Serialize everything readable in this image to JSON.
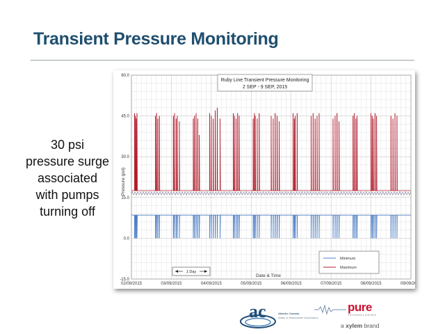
{
  "slide": {
    "title": "Transient Pressure Monitoring",
    "callout_lines": [
      "30 psi",
      "pressure surge",
      "associated",
      "with pumps",
      "turning off"
    ]
  },
  "logos": {
    "ac_mark": "ac",
    "ac_name_line1": "Atlantic Canada",
    "ac_name_line2": "Water & Wastewater Association",
    "pure_word": "pure",
    "pure_sub": "TECHNOLOGIES",
    "xylem_prefix": "a ",
    "xylem_brand": "xylem",
    "xylem_suffix": " brand"
  },
  "colors": {
    "title": "#1f4e6e",
    "minimum_series": "#4f7fc4",
    "maximum_series": "#b01c2c"
  },
  "chart_data": {
    "type": "line",
    "title": "Ruby Line Transient Pressure Monitoring",
    "subtitle": "2 SEP - 9 SEP, 2015",
    "xlabel": "Date & Time",
    "ylabel": "Pressure (psi)",
    "ylim": [
      -15,
      60
    ],
    "yticks": [
      "-15.0",
      "0.0",
      "15.0",
      "30.0",
      "45.0",
      "60.0"
    ],
    "xlim": [
      "02/09/2015",
      "09/09/2015"
    ],
    "xticks": [
      "02/09/2015",
      "03/09/2015",
      "04/09/2015",
      "05/09/2015",
      "06/09/2015",
      "07/09/2015",
      "08/09/2015",
      "09/09/2015"
    ],
    "grid": true,
    "legend": {
      "placement": "bottom-right",
      "entries": [
        "Minimum",
        "Maximum"
      ]
    },
    "annotation": "1 Day",
    "baseline": {
      "minimum": 8.5,
      "maximum": 17.5
    },
    "series": [
      {
        "name": "Minimum",
        "spikes_day": [
          0.08,
          0.1,
          0.12,
          0.14,
          0.6,
          0.63,
          0.66,
          0.7,
          1.05,
          1.08,
          1.12,
          1.15,
          1.2,
          1.55,
          1.58,
          1.62,
          1.66,
          1.7,
          1.96,
          2.0,
          2.05,
          2.1,
          2.15,
          2.22,
          2.55,
          2.58,
          2.62,
          2.66,
          2.7,
          3.05,
          3.08,
          3.1,
          3.15,
          3.2,
          3.5,
          3.55,
          3.6,
          3.65,
          3.7,
          4.05,
          4.08,
          4.1,
          4.15,
          4.5,
          4.55,
          4.6,
          4.65,
          4.7,
          5.05,
          5.1,
          5.15,
          5.2,
          5.55,
          5.58,
          5.62,
          5.65,
          6.0,
          6.03,
          6.06,
          6.1,
          6.14,
          6.5,
          6.55,
          6.6,
          6.65
        ],
        "spike_values": [
          0,
          0,
          0,
          0,
          0,
          0,
          0,
          0,
          0,
          0,
          0,
          0,
          0,
          0,
          0,
          0,
          0,
          0,
          0,
          0,
          0,
          0,
          0,
          0,
          0,
          0,
          0,
          0,
          0,
          0,
          0,
          0,
          0,
          0,
          0,
          0,
          0,
          0,
          0,
          0,
          0,
          0,
          0,
          0,
          0,
          0,
          0,
          0,
          0,
          0,
          0,
          0,
          0,
          0,
          0,
          0,
          0,
          0,
          0,
          0,
          0,
          0,
          0,
          0,
          0
        ]
      },
      {
        "name": "Maximum",
        "spikes_day": [
          0.08,
          0.1,
          0.12,
          0.14,
          0.6,
          0.63,
          0.66,
          0.7,
          1.05,
          1.08,
          1.12,
          1.15,
          1.2,
          1.55,
          1.58,
          1.62,
          1.66,
          1.7,
          1.96,
          2.0,
          2.05,
          2.1,
          2.15,
          2.22,
          2.55,
          2.58,
          2.62,
          2.66,
          2.7,
          3.05,
          3.08,
          3.1,
          3.15,
          3.2,
          3.5,
          3.55,
          3.6,
          3.65,
          3.7,
          4.05,
          4.08,
          4.1,
          4.15,
          4.5,
          4.55,
          4.6,
          4.65,
          4.7,
          5.05,
          5.1,
          5.15,
          5.2,
          5.55,
          5.58,
          5.62,
          5.65,
          6.0,
          6.03,
          6.06,
          6.1,
          6.14,
          6.5,
          6.55,
          6.6,
          6.65
        ],
        "spike_values": [
          46,
          45,
          44,
          46,
          45,
          46,
          44,
          45,
          45,
          46,
          44,
          45,
          43,
          44,
          45,
          46,
          44,
          38,
          46,
          45,
          44,
          47,
          48,
          44,
          46,
          45,
          44,
          46,
          45,
          44,
          46,
          45,
          44,
          46,
          45,
          44,
          46,
          45,
          43,
          46,
          44,
          45,
          46,
          45,
          46,
          44,
          45,
          46,
          44,
          45,
          46,
          43,
          45,
          46,
          44,
          45,
          46,
          45,
          44,
          46,
          45,
          45,
          44,
          46,
          45
        ]
      }
    ]
  }
}
